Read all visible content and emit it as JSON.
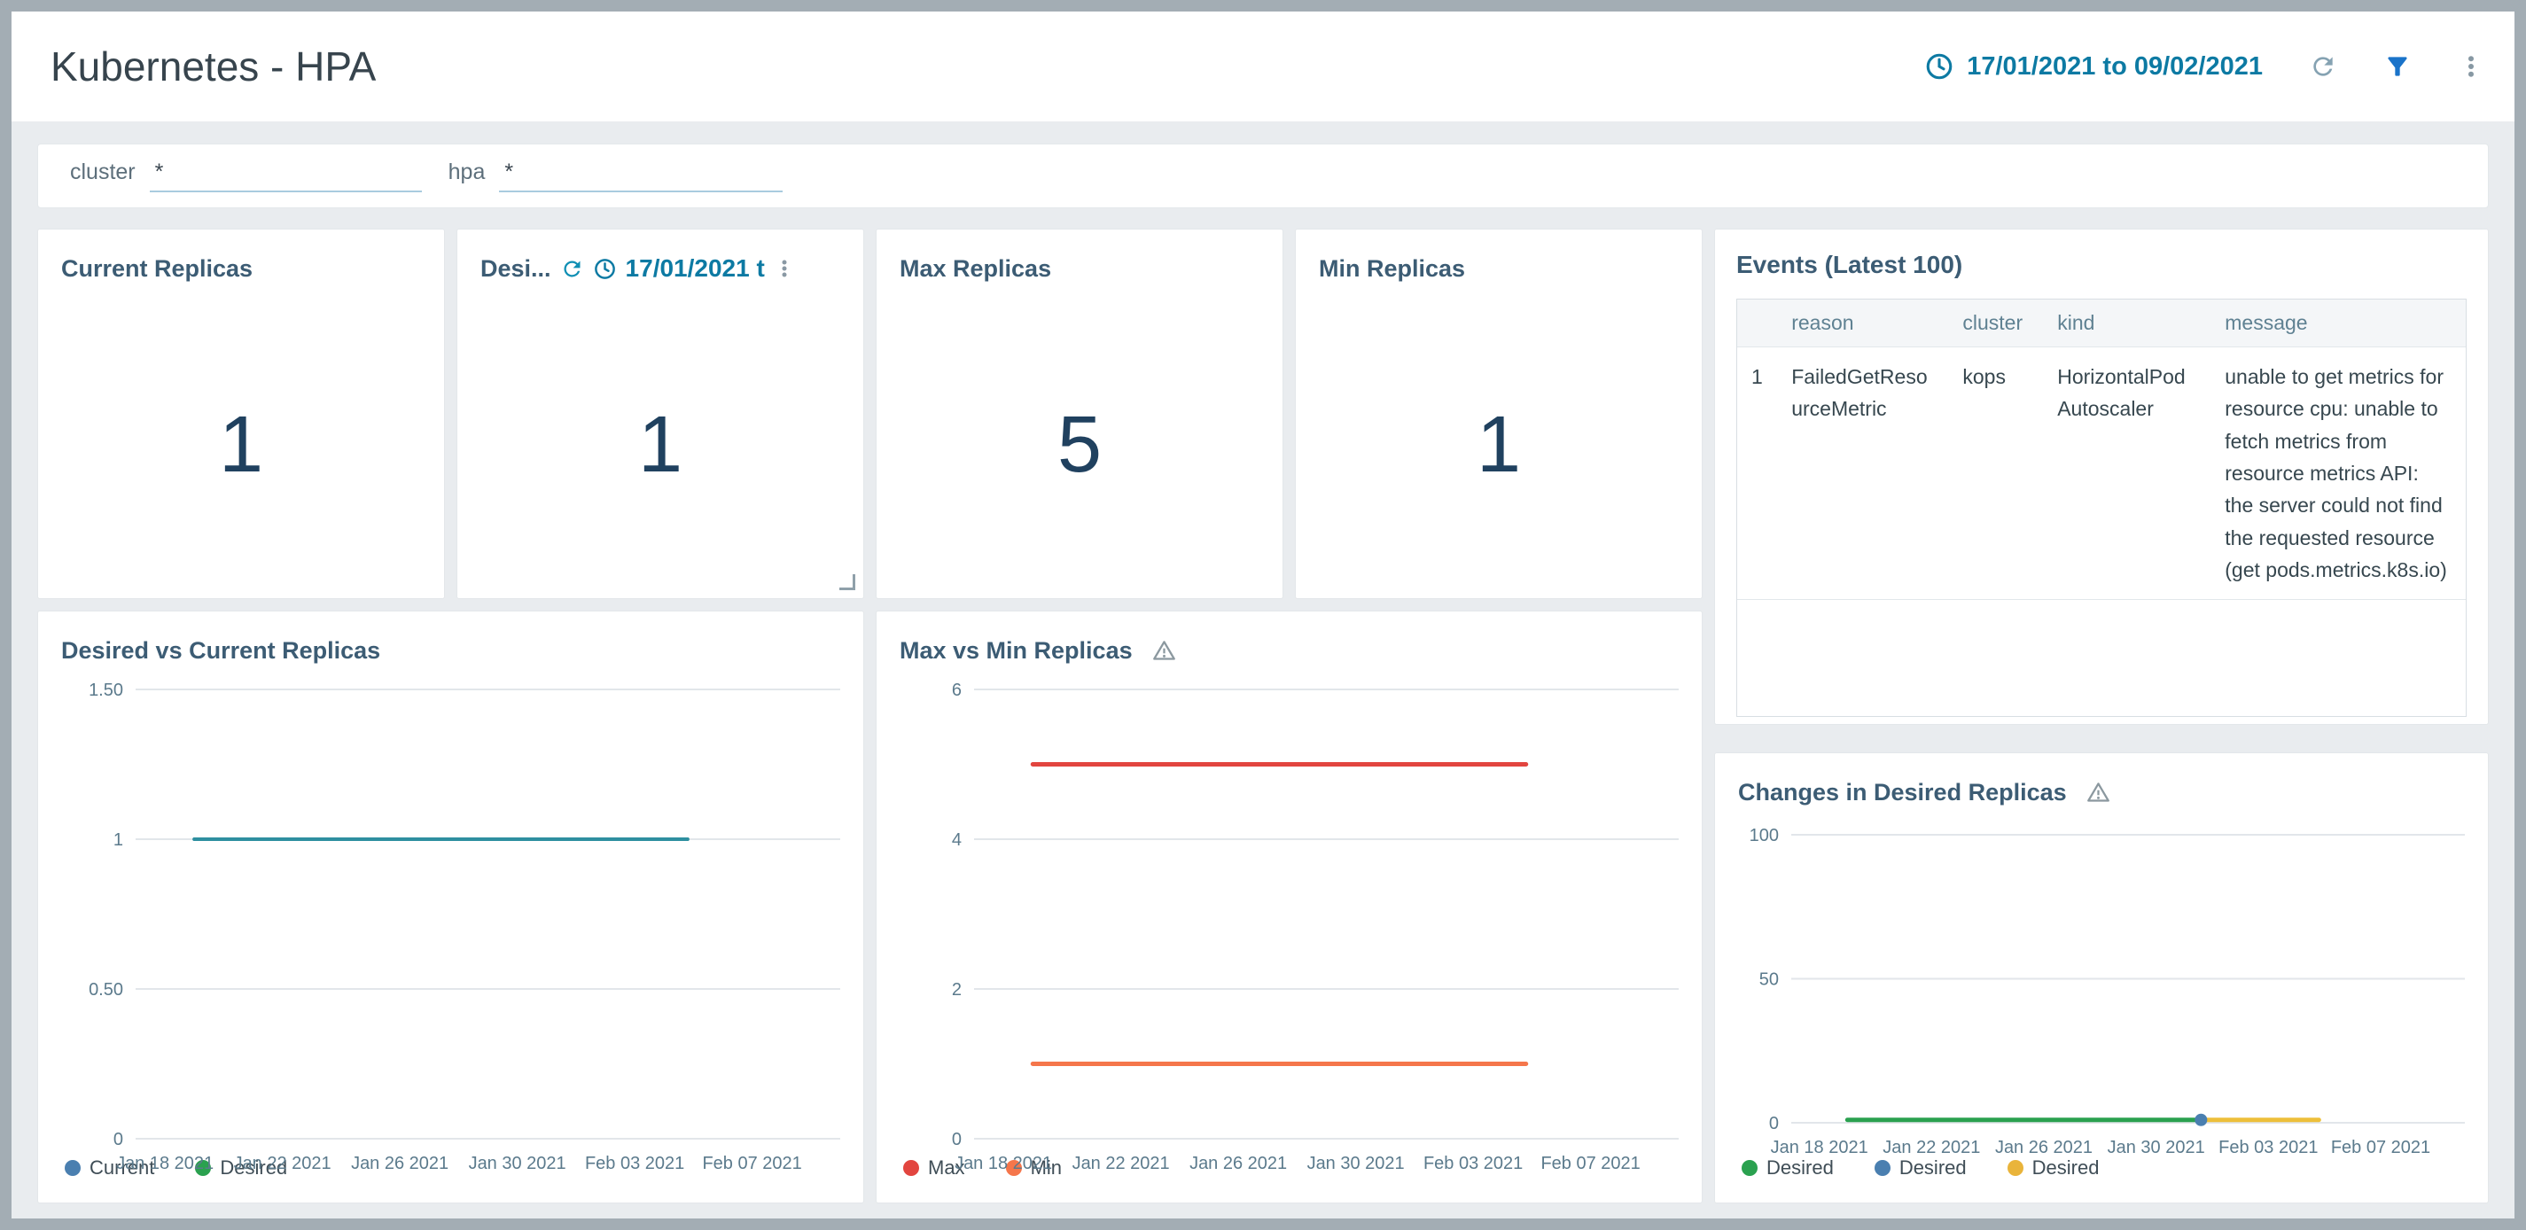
{
  "header": {
    "title": "Kubernetes - HPA",
    "time_range": "17/01/2021 to 09/02/2021",
    "icons": [
      "clock-icon",
      "refresh-icon",
      "filter-icon",
      "kebab-menu-icon"
    ]
  },
  "colors": {
    "accent_blue": "#1a73c9",
    "time_teal": "#0d7aa3",
    "panel_title": "#3c5c74",
    "stat_value": "#20415f",
    "frame_border": "#a3adb4",
    "background": "#e9ecef"
  },
  "filters": [
    {
      "label": "cluster",
      "value": "*"
    },
    {
      "label": "hpa",
      "value": "*"
    }
  ],
  "stat_panels": [
    {
      "title": "Current Replicas",
      "value": "1"
    },
    {
      "title": "Desi...",
      "value": "1",
      "overlay_time": "17/01/2021 t"
    },
    {
      "title": "Max Replicas",
      "value": "5"
    },
    {
      "title": "Min Replicas",
      "value": "1"
    }
  ],
  "events": {
    "title": "Events (Latest 100)",
    "columns": [
      "reason",
      "cluster",
      "kind",
      "message"
    ],
    "rows": [
      {
        "index": "1",
        "reason": "FailedGetResourceMetric",
        "cluster": "kops",
        "kind": "HorizontalPodAutoscaler",
        "message": "unable to get metrics for resource cpu: unable to fetch metrics from resource metrics API: the server could not find the requested resource (get pods.metrics.k8s.io)"
      }
    ]
  },
  "chart_data": [
    {
      "type": "line",
      "title": "Desired vs Current Replicas",
      "warning": false,
      "x_domain": [
        0,
        24
      ],
      "x_domain_note": "days since Jan 17 2021",
      "x_tick_days": [
        1,
        5,
        9,
        13,
        17,
        21
      ],
      "x_tick_labels": [
        "Jan 18 2021",
        "Jan 22 2021",
        "Jan 26 2021",
        "Jan 30 2021",
        "Feb 03 2021",
        "Feb 07 2021"
      ],
      "ylim": [
        0,
        1.5
      ],
      "y_ticks": [
        {
          "v": 0,
          "label": "0"
        },
        {
          "v": 0.5,
          "label": "0.50"
        },
        {
          "v": 1,
          "label": "1"
        },
        {
          "v": 1.5,
          "label": "1.50"
        }
      ],
      "grid": true,
      "legend_position": "bottom-left",
      "series": [
        {
          "name": "Current",
          "legend_color": "#4a7fb0",
          "color": "#2e8fa0",
          "width": 4,
          "points": [
            [
              2,
              1
            ],
            [
              18.8,
              1
            ]
          ]
        },
        {
          "name": "Desired",
          "legend_color": "#2aa14f",
          "color": "#2e8fa0",
          "width": 4,
          "points": [
            [
              2,
              1
            ],
            [
              18.8,
              1
            ]
          ]
        }
      ]
    },
    {
      "type": "line",
      "title": "Max vs Min Replicas",
      "warning": true,
      "x_domain": [
        0,
        24
      ],
      "x_domain_note": "days since Jan 17 2021",
      "x_tick_days": [
        1,
        5,
        9,
        13,
        17,
        21
      ],
      "x_tick_labels": [
        "Jan 18 2021",
        "Jan 22 2021",
        "Jan 26 2021",
        "Jan 30 2021",
        "Feb 03 2021",
        "Feb 07 2021"
      ],
      "ylim": [
        0,
        6
      ],
      "y_ticks": [
        {
          "v": 0,
          "label": "0"
        },
        {
          "v": 2,
          "label": "2"
        },
        {
          "v": 4,
          "label": "4"
        },
        {
          "v": 6,
          "label": "6"
        }
      ],
      "grid": true,
      "legend_position": "bottom-left",
      "series": [
        {
          "name": "Max",
          "legend_color": "#e2453f",
          "color": "#e2453f",
          "width": 5,
          "points": [
            [
              2,
              5
            ],
            [
              18.8,
              5
            ]
          ]
        },
        {
          "name": "Min",
          "legend_color": "#f5764b",
          "color": "#f5764b",
          "width": 5,
          "points": [
            [
              2,
              1
            ],
            [
              18.8,
              1
            ]
          ]
        }
      ]
    },
    {
      "type": "line",
      "title": "Changes in Desired Replicas",
      "warning": true,
      "x_domain": [
        0,
        24
      ],
      "x_domain_note": "days since Jan 17 2021",
      "x_tick_days": [
        1,
        5,
        9,
        13,
        17,
        21
      ],
      "x_tick_labels": [
        "Jan 18 2021",
        "Jan 22 2021",
        "Jan 26 2021",
        "Jan 30 2021",
        "Feb 03 2021",
        "Feb 07 2021"
      ],
      "ylim": [
        0,
        100
      ],
      "y_ticks": [
        {
          "v": 0,
          "label": "0"
        },
        {
          "v": 50,
          "label": "50"
        },
        {
          "v": 100,
          "label": "100"
        }
      ],
      "grid": true,
      "legend_position": "bottom-left",
      "series": [
        {
          "name": "Desired",
          "legend_color": "#2aa14f",
          "color": "#2aa14f",
          "width": 5,
          "points": [
            [
              2,
              1
            ],
            [
              14.6,
              1
            ]
          ]
        },
        {
          "name": "Desired",
          "legend_color": "#4a7fb0",
          "color": "#4a7fb0",
          "marker": true,
          "points": [
            [
              14.6,
              1
            ]
          ]
        },
        {
          "name": "Desired",
          "legend_color": "#e9b43b",
          "color": "#edbf3a",
          "width": 5,
          "points": [
            [
              14.6,
              1
            ],
            [
              18.8,
              1
            ]
          ]
        }
      ]
    }
  ]
}
